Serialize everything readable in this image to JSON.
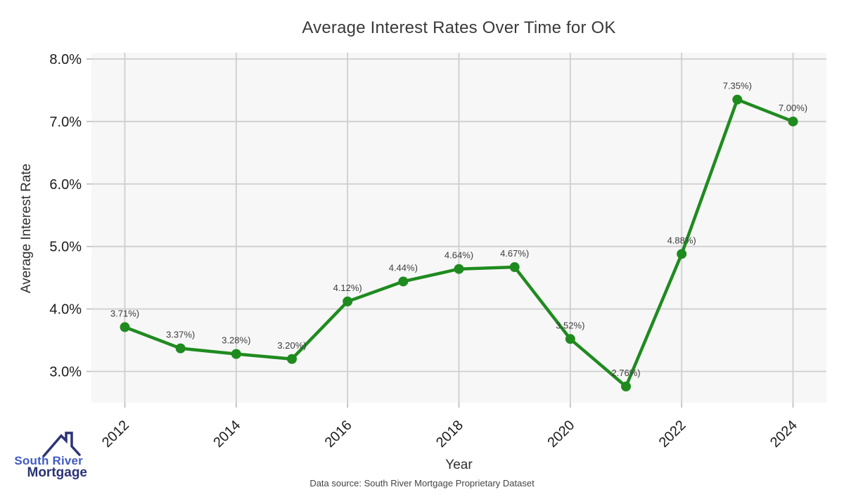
{
  "chart_data": {
    "type": "line",
    "title": "Average Interest Rates Over Time for OK",
    "xlabel": "Year",
    "ylabel": "Average Interest Rate",
    "source_note": "Data source: South River Mortgage Proprietary Dataset",
    "x": [
      2012,
      2013,
      2014,
      2015,
      2016,
      2017,
      2018,
      2019,
      2020,
      2021,
      2022,
      2023,
      2024
    ],
    "values": [
      3.71,
      3.37,
      3.28,
      3.2,
      4.12,
      4.44,
      4.64,
      4.67,
      3.52,
      2.76,
      4.88,
      7.35,
      7.0
    ],
    "point_labels": [
      "3.71%)",
      "3.37%)",
      "3.28%)",
      "3.20%)",
      "4.12%)",
      "4.44%)",
      "4.64%)",
      "4.67%)",
      "3.52%)",
      "2.76%)",
      "4.88%)",
      "7.35%)",
      "7.00%)"
    ],
    "x_tick_values": [
      2012,
      2014,
      2016,
      2018,
      2020,
      2022,
      2024
    ],
    "x_tick_labels": [
      "2012",
      "2014",
      "2016",
      "2018",
      "2020",
      "2022",
      "2024"
    ],
    "y_tick_values": [
      8,
      7,
      6,
      5,
      4,
      3
    ],
    "y_tick_labels": [
      "8.0%",
      "7.0%",
      "6.0%",
      "5.0%",
      "4.0%",
      "3.0%"
    ],
    "xlim": [
      2011.4,
      2024.6
    ],
    "ylim": [
      2.5,
      8.1
    ],
    "grid": true,
    "legend": false,
    "colors": {
      "line": "#1f8b1f",
      "marker": "#1f8b1f",
      "plot_bg": "#f7f7f7",
      "grid": "#cecece",
      "tick_mark": "#c2c2c2",
      "tick_text": "#1c1c1c",
      "point_label_text": "#3c3c3c"
    }
  },
  "logo": {
    "line1": "South River",
    "line2": "Mortgage",
    "color_line1": "#3f5ac6",
    "color_line2": "#2b3377",
    "roof_color": "#2b3377"
  }
}
